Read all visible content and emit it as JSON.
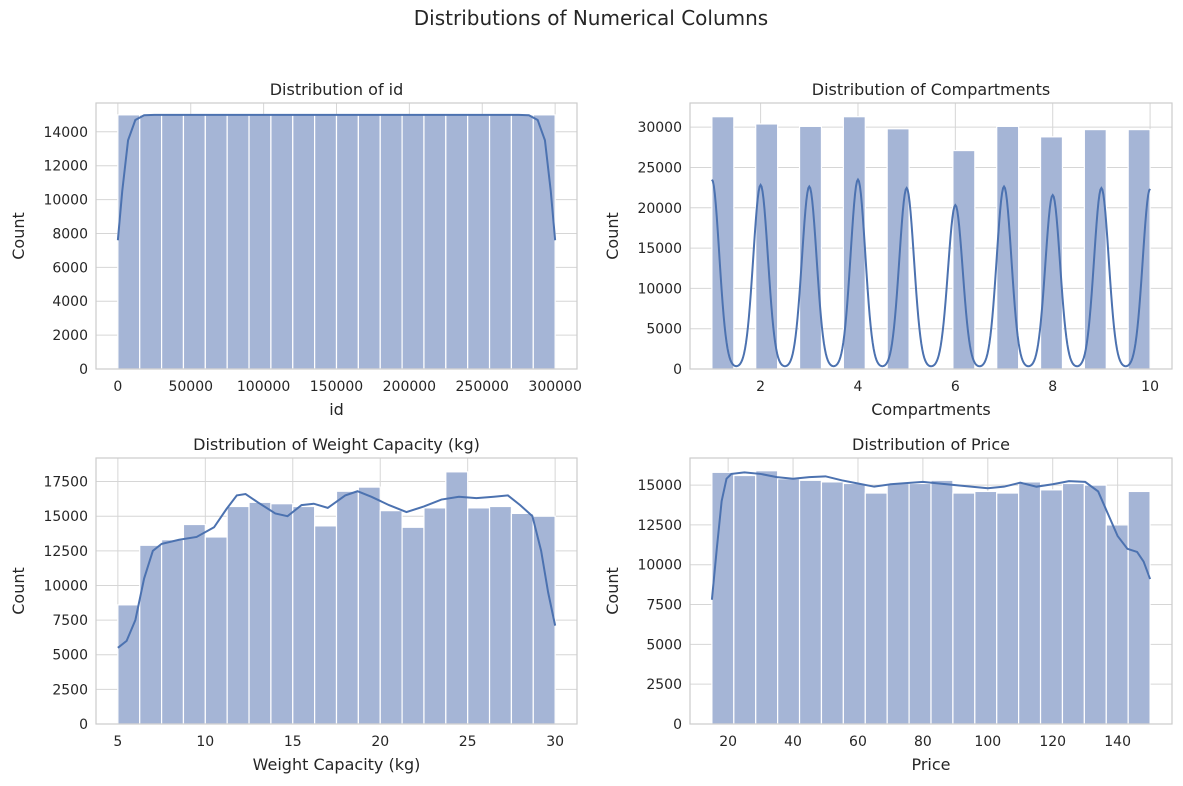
{
  "figure": {
    "title": "Distributions of Numerical Columns"
  },
  "colors": {
    "bar_fill": "#a5b5d6",
    "kde_line": "#4c72b0",
    "grid": "#d6d6d6",
    "frame": "#cccccc",
    "bar_edge": "#ffffff"
  },
  "chart_data": [
    {
      "type": "bar",
      "title": "Distribution of id",
      "xlabel": "id",
      "ylabel": "Count",
      "xlim": [
        -15000,
        315000
      ],
      "ylim": [
        0,
        15700
      ],
      "xticks": [
        0,
        50000,
        100000,
        150000,
        200000,
        250000,
        300000
      ],
      "yticks": [
        0,
        2000,
        4000,
        6000,
        8000,
        10000,
        12000,
        14000
      ],
      "grid": true,
      "bins": [
        [
          0,
          15000,
          15000
        ],
        [
          15000,
          30000,
          15000
        ],
        [
          30000,
          45000,
          15000
        ],
        [
          45000,
          60000,
          15000
        ],
        [
          60000,
          75000,
          15000
        ],
        [
          75000,
          90000,
          15000
        ],
        [
          90000,
          105000,
          15000
        ],
        [
          105000,
          120000,
          15000
        ],
        [
          120000,
          135000,
          15000
        ],
        [
          135000,
          150000,
          15000
        ],
        [
          150000,
          165000,
          15000
        ],
        [
          165000,
          180000,
          15000
        ],
        [
          180000,
          195000,
          15000
        ],
        [
          195000,
          210000,
          15000
        ],
        [
          210000,
          225000,
          15000
        ],
        [
          225000,
          240000,
          15000
        ],
        [
          240000,
          255000,
          15000
        ],
        [
          255000,
          270000,
          15000
        ],
        [
          270000,
          285000,
          15000
        ],
        [
          285000,
          300000,
          15000
        ]
      ],
      "kde": [
        [
          0,
          7600
        ],
        [
          3000,
          10500
        ],
        [
          7000,
          13500
        ],
        [
          12000,
          14700
        ],
        [
          18000,
          14980
        ],
        [
          25000,
          15000
        ],
        [
          150000,
          15000
        ],
        [
          275000,
          15000
        ],
        [
          282000,
          14980
        ],
        [
          288000,
          14700
        ],
        [
          293000,
          13500
        ],
        [
          297000,
          10500
        ],
        [
          300000,
          7600
        ]
      ]
    },
    {
      "type": "bar",
      "title": "Distribution of Compartments",
      "xlabel": "Compartments",
      "ylabel": "Count",
      "xlim": [
        0.55,
        10.45
      ],
      "ylim": [
        0,
        33000
      ],
      "xticks": [
        2,
        4,
        6,
        8,
        10
      ],
      "yticks": [
        0,
        5000,
        10000,
        15000,
        20000,
        25000,
        30000
      ],
      "grid": true,
      "bins": [
        [
          1.0,
          1.45,
          31300
        ],
        [
          1.9,
          2.35,
          30400
        ],
        [
          2.8,
          3.25,
          30100
        ],
        [
          3.7,
          4.15,
          31300
        ],
        [
          4.6,
          5.05,
          29800
        ],
        [
          5.95,
          6.4,
          27100
        ],
        [
          6.85,
          7.3,
          30100
        ],
        [
          7.75,
          8.2,
          28800
        ],
        [
          8.65,
          9.1,
          29700
        ],
        [
          9.55,
          10.0,
          29700
        ]
      ],
      "kde_peaks": [
        [
          1.0,
          24300
        ],
        [
          2.0,
          23600
        ],
        [
          3.0,
          23400
        ],
        [
          4.0,
          24300
        ],
        [
          5.0,
          23200
        ],
        [
          6.0,
          21000
        ],
        [
          7.0,
          23400
        ],
        [
          8.0,
          22300
        ],
        [
          9.0,
          23200
        ],
        [
          10.0,
          23100
        ]
      ],
      "kde_base": 4300,
      "kde_sigma": 0.15,
      "kde_scale": 0.96
    },
    {
      "type": "bar",
      "title": "Distribution of Weight Capacity (kg)",
      "xlabel": "Weight Capacity (kg)",
      "ylabel": "Count",
      "xlim": [
        3.75,
        31.25
      ],
      "ylim": [
        0,
        19200
      ],
      "xticks": [
        5,
        10,
        15,
        20,
        25,
        30
      ],
      "yticks": [
        0,
        2500,
        5000,
        7500,
        10000,
        12500,
        15000,
        17500
      ],
      "grid": true,
      "bins": [
        [
          5.0,
          6.25,
          8600
        ],
        [
          6.25,
          7.5,
          12900
        ],
        [
          7.5,
          8.75,
          13300
        ],
        [
          8.75,
          10.0,
          14400
        ],
        [
          10.0,
          11.25,
          13500
        ],
        [
          11.25,
          12.5,
          15700
        ],
        [
          12.5,
          13.75,
          16000
        ],
        [
          13.75,
          15.0,
          15900
        ],
        [
          15.0,
          16.25,
          15700
        ],
        [
          16.25,
          17.5,
          14300
        ],
        [
          17.5,
          18.75,
          16800
        ],
        [
          18.75,
          20.0,
          17100
        ],
        [
          20.0,
          21.25,
          15400
        ],
        [
          21.25,
          22.5,
          14200
        ],
        [
          22.5,
          23.75,
          15600
        ],
        [
          23.75,
          25.0,
          18200
        ],
        [
          25.0,
          26.25,
          15600
        ],
        [
          26.25,
          27.5,
          15700
        ],
        [
          27.5,
          28.75,
          15200
        ],
        [
          28.75,
          30.0,
          15000
        ]
      ],
      "kde": [
        [
          5.0,
          5500
        ],
        [
          5.5,
          6000
        ],
        [
          6.0,
          7500
        ],
        [
          6.5,
          10500
        ],
        [
          7.0,
          12500
        ],
        [
          7.5,
          13000
        ],
        [
          8.5,
          13300
        ],
        [
          9.5,
          13500
        ],
        [
          10.5,
          14200
        ],
        [
          11.2,
          15500
        ],
        [
          11.8,
          16500
        ],
        [
          12.3,
          16600
        ],
        [
          13.0,
          16000
        ],
        [
          14.0,
          15200
        ],
        [
          14.7,
          15000
        ],
        [
          15.5,
          15800
        ],
        [
          16.2,
          15900
        ],
        [
          17.0,
          15600
        ],
        [
          18.0,
          16500
        ],
        [
          18.7,
          16800
        ],
        [
          19.5,
          16400
        ],
        [
          20.5,
          15800
        ],
        [
          21.5,
          15300
        ],
        [
          22.5,
          15700
        ],
        [
          23.5,
          16200
        ],
        [
          24.5,
          16400
        ],
        [
          25.5,
          16300
        ],
        [
          26.5,
          16400
        ],
        [
          27.3,
          16500
        ],
        [
          28.0,
          15800
        ],
        [
          28.7,
          15000
        ],
        [
          29.2,
          12500
        ],
        [
          29.6,
          9500
        ],
        [
          30.0,
          7100
        ]
      ]
    },
    {
      "type": "bar",
      "title": "Distribution of Price",
      "xlabel": "Price",
      "ylabel": "Count",
      "xlim": [
        8.25,
        156.75
      ],
      "ylim": [
        0,
        16700
      ],
      "xticks": [
        20,
        40,
        60,
        80,
        100,
        120,
        140
      ],
      "yticks": [
        0,
        2500,
        5000,
        7500,
        10000,
        12500,
        15000
      ],
      "grid": true,
      "bins": [
        [
          15.0,
          21.75,
          15800
        ],
        [
          21.75,
          28.5,
          15600
        ],
        [
          28.5,
          35.25,
          15900
        ],
        [
          35.25,
          42.0,
          15400
        ],
        [
          42.0,
          48.75,
          15300
        ],
        [
          48.75,
          55.5,
          15200
        ],
        [
          55.5,
          62.25,
          15100
        ],
        [
          62.25,
          69.0,
          14500
        ],
        [
          69.0,
          75.75,
          15100
        ],
        [
          75.75,
          82.5,
          15100
        ],
        [
          82.5,
          89.25,
          15300
        ],
        [
          89.25,
          96.0,
          14500
        ],
        [
          96.0,
          102.75,
          14600
        ],
        [
          102.75,
          109.5,
          14500
        ],
        [
          109.5,
          116.25,
          15200
        ],
        [
          116.25,
          123.0,
          14700
        ],
        [
          123.0,
          129.75,
          15100
        ],
        [
          129.75,
          136.5,
          15000
        ],
        [
          136.5,
          143.25,
          12500
        ],
        [
          143.25,
          150.0,
          14600
        ]
      ],
      "kde": [
        [
          15,
          7800
        ],
        [
          16.5,
          11000
        ],
        [
          18,
          14000
        ],
        [
          19.5,
          15400
        ],
        [
          21,
          15700
        ],
        [
          25,
          15800
        ],
        [
          30,
          15700
        ],
        [
          35,
          15500
        ],
        [
          40,
          15400
        ],
        [
          45,
          15500
        ],
        [
          50,
          15550
        ],
        [
          55,
          15300
        ],
        [
          60,
          15100
        ],
        [
          65,
          14900
        ],
        [
          70,
          15050
        ],
        [
          80,
          15200
        ],
        [
          90,
          15000
        ],
        [
          100,
          14800
        ],
        [
          105,
          14900
        ],
        [
          110,
          15150
        ],
        [
          115,
          14900
        ],
        [
          120,
          15050
        ],
        [
          125,
          15250
        ],
        [
          130,
          15200
        ],
        [
          134,
          14600
        ],
        [
          137,
          13200
        ],
        [
          140,
          11800
        ],
        [
          143,
          11000
        ],
        [
          146,
          10800
        ],
        [
          148,
          10200
        ],
        [
          150,
          9100
        ]
      ]
    }
  ]
}
